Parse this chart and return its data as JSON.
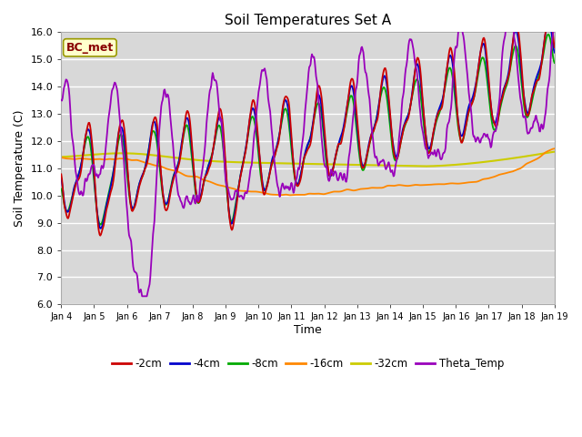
{
  "title": "Soil Temperatures Set A",
  "xlabel": "Time",
  "ylabel": "Soil Temperature (C)",
  "ylim": [
    6.0,
    16.0
  ],
  "yticks": [
    6.0,
    7.0,
    8.0,
    9.0,
    10.0,
    11.0,
    12.0,
    13.0,
    14.0,
    15.0,
    16.0
  ],
  "background_color": "#d8d8d8",
  "series_colors": {
    "-2cm": "#cc0000",
    "-4cm": "#0000cc",
    "-8cm": "#00aa00",
    "-16cm": "#ff8800",
    "-32cm": "#cccc00",
    "Theta_Temp": "#9900bb"
  },
  "legend_label": "BC_met",
  "legend_bg": "#ffffcc",
  "legend_border": "#999900",
  "legend_text_color": "#880000",
  "x_tick_labels": [
    "Jan 4",
    "Jan 5",
    "Jan 6",
    "Jan 7",
    "Jan 8",
    "Jan 9",
    "Jan 10",
    "Jan 11",
    "Jan 12",
    "Jan 13",
    "Jan 14",
    "Jan 15",
    "Jan 16",
    "Jan 17",
    "Jan 18",
    "Jan 19"
  ],
  "n_points": 721
}
